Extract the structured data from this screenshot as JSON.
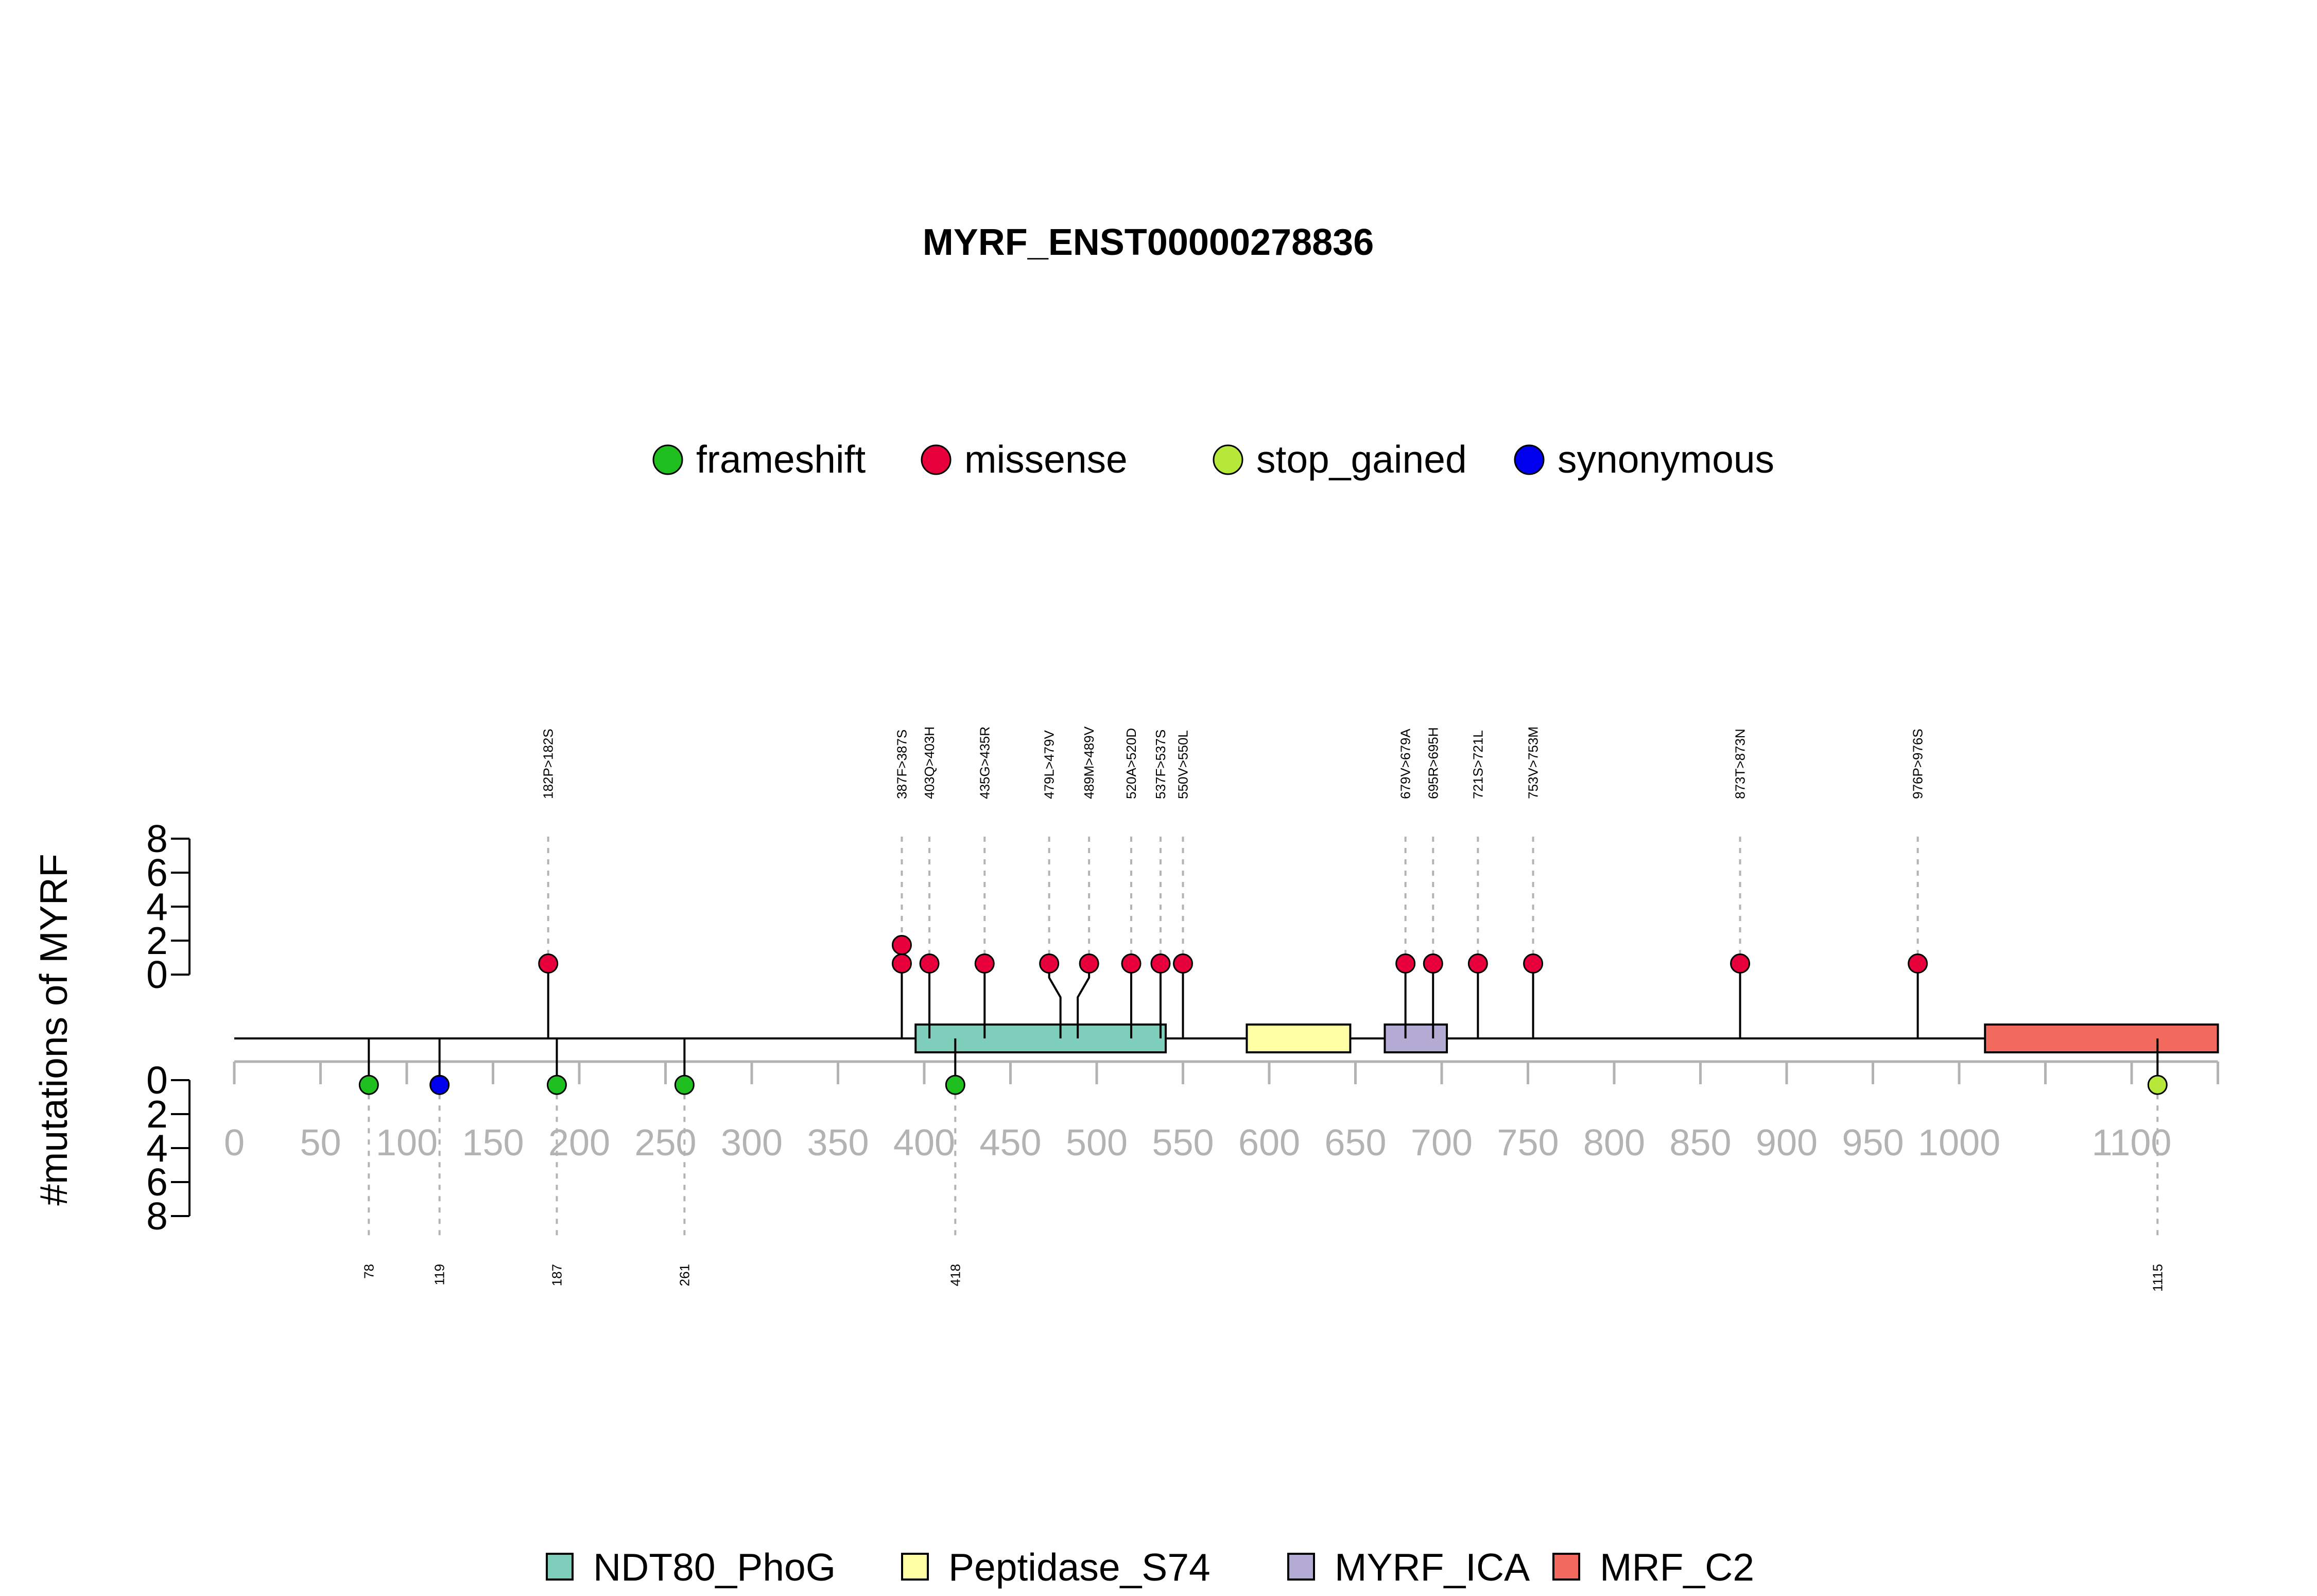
{
  "chart_data": {
    "type": "lollipop",
    "title": "MYRF_ENST00000278836",
    "ylabel": "#mutations of MYRF",
    "y_ticks": [
      "0",
      "2",
      "4",
      "6",
      "8"
    ],
    "ylim": [
      0,
      8
    ],
    "x_ticks": [
      "0",
      "50",
      "100",
      "150",
      "200",
      "250",
      "300",
      "350",
      "400",
      "450",
      "500",
      "550",
      "600",
      "650",
      "700",
      "750",
      "800",
      "850",
      "900",
      "950",
      "1000",
      "1100"
    ],
    "x_tick_values": [
      0,
      50,
      100,
      150,
      200,
      250,
      300,
      350,
      400,
      450,
      500,
      550,
      600,
      650,
      700,
      750,
      800,
      850,
      900,
      950,
      1000,
      1100
    ],
    "minor_tick_values": [
      1050
    ],
    "xlim": [
      0,
      1150
    ],
    "mutation_types": [
      {
        "name": "frameshift",
        "color": "#1fbf1f"
      },
      {
        "name": "missense",
        "color": "#e8003c"
      },
      {
        "name": "stop_gained",
        "color": "#b6e83a"
      },
      {
        "name": "synonymous",
        "color": "#0000ee"
      }
    ],
    "domains": [
      {
        "name": "NDT80_PhoG",
        "start": 395,
        "end": 540,
        "color": "#7fcdbb"
      },
      {
        "name": "Peptidase_S74",
        "start": 587,
        "end": 647,
        "color": "#ffffa6"
      },
      {
        "name": "MYRF_ICA",
        "start": 667,
        "end": 703,
        "color": "#b3abd3"
      },
      {
        "name": "MRF_C2",
        "start": 1015,
        "end": 1150,
        "color": "#f26a5e"
      }
    ],
    "top_mutations": [
      {
        "label": "182P>182S",
        "position": 182,
        "count": 1,
        "type": "missense"
      },
      {
        "label": "387F>387S",
        "position": 387,
        "count": 2,
        "type": "missense"
      },
      {
        "label": "403Q>403H",
        "position": 403,
        "count": 1,
        "type": "missense"
      },
      {
        "label": "435G>435R",
        "position": 435,
        "count": 1,
        "type": "missense"
      },
      {
        "label": "479L>479V",
        "position": 479,
        "count": 1,
        "type": "missense"
      },
      {
        "label": "489M>489V",
        "position": 489,
        "count": 1,
        "type": "missense"
      },
      {
        "label": "520A>520D",
        "position": 520,
        "count": 1,
        "type": "missense"
      },
      {
        "label": "537F>537S",
        "position": 537,
        "count": 1,
        "type": "missense"
      },
      {
        "label": "550V>550L",
        "position": 550,
        "count": 1,
        "type": "missense"
      },
      {
        "label": "679V>679A",
        "position": 679,
        "count": 1,
        "type": "missense"
      },
      {
        "label": "695R>695H",
        "position": 695,
        "count": 1,
        "type": "missense"
      },
      {
        "label": "721S>721L",
        "position": 721,
        "count": 1,
        "type": "missense"
      },
      {
        "label": "753V>753M",
        "position": 753,
        "count": 1,
        "type": "missense"
      },
      {
        "label": "873T>873N",
        "position": 873,
        "count": 1,
        "type": "missense"
      },
      {
        "label": "976P>976S",
        "position": 976,
        "count": 1,
        "type": "missense"
      }
    ],
    "bottom_mutations": [
      {
        "label": "78",
        "position": 78,
        "count": 1,
        "type": "frameshift"
      },
      {
        "label": "119",
        "position": 119,
        "count": 1,
        "type": "synonymous"
      },
      {
        "label": "187",
        "position": 187,
        "count": 1,
        "type": "frameshift"
      },
      {
        "label": "261",
        "position": 261,
        "count": 1,
        "type": "frameshift"
      },
      {
        "label": "418",
        "position": 418,
        "count": 1,
        "type": "frameshift"
      },
      {
        "label": "1115",
        "position": 1115,
        "count": 1,
        "type": "stop_gained"
      }
    ]
  }
}
